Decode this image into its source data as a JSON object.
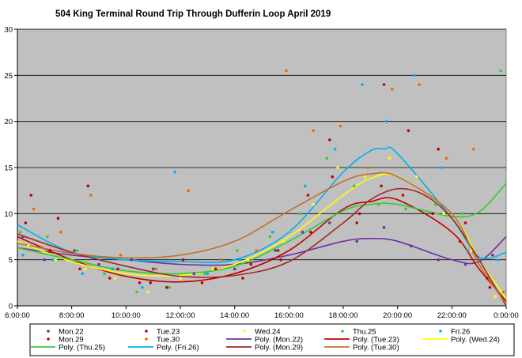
{
  "chart_data": {
    "type": "scatter",
    "title": "504 King  Terminal  Round  Trip  Through  Dufferin  Loop  April  2019",
    "xlabel": "",
    "ylabel": "",
    "x_tick_labels": [
      "6:00:00",
      "8:00:00",
      "10:00:00",
      "12:00:00",
      "14:00:00",
      "16:00:00",
      "18:00:00",
      "20:00:00",
      "22:00:00",
      "0:00:00"
    ],
    "y_tick_labels": [
      "0",
      "5",
      "10",
      "15",
      "20",
      "25",
      "30"
    ],
    "xlim_hours": [
      6,
      24
    ],
    "ylim": [
      0,
      30
    ],
    "grid": "horizontal",
    "plot_background": "#c0c0c0",
    "legend_position": "bottom",
    "series": [
      {
        "name": "Mon.22",
        "kind": "scatter",
        "color": "#7030a0",
        "points": [
          [
            6.2,
            7.5
          ],
          [
            7.0,
            5.0
          ],
          [
            8.1,
            6.0
          ],
          [
            9.0,
            4.5
          ],
          [
            10.2,
            5.0
          ],
          [
            11.0,
            4.0
          ],
          [
            12.5,
            3.5
          ],
          [
            14.0,
            4.0
          ],
          [
            15.5,
            6.0
          ],
          [
            16.5,
            8.0
          ],
          [
            17.5,
            9.0
          ],
          [
            18.5,
            7.0
          ],
          [
            19.5,
            8.5
          ],
          [
            20.5,
            6.5
          ],
          [
            21.5,
            5.0
          ],
          [
            22.5,
            4.5
          ],
          [
            23.5,
            5.5
          ]
        ]
      },
      {
        "name": "Tue.23",
        "kind": "scatter",
        "color": "#c00000",
        "points": [
          [
            6.3,
            9.0
          ],
          [
            7.2,
            6.0
          ],
          [
            8.3,
            4.0
          ],
          [
            9.4,
            3.0
          ],
          [
            10.5,
            2.5
          ],
          [
            11.5,
            2.0
          ],
          [
            12.8,
            2.5
          ],
          [
            14.3,
            3.0
          ],
          [
            15.7,
            5.0
          ],
          [
            16.8,
            8.0
          ],
          [
            17.6,
            14.0
          ],
          [
            18.6,
            10.0
          ],
          [
            19.4,
            13.0
          ],
          [
            20.2,
            12.0
          ],
          [
            21.3,
            10.0
          ],
          [
            22.3,
            7.0
          ],
          [
            23.3,
            3.0
          ]
        ]
      },
      {
        "name": "Wed.24",
        "kind": "scatter",
        "color": "#ffff00",
        "points": [
          [
            6.4,
            6.5
          ],
          [
            7.4,
            5.0
          ],
          [
            8.5,
            4.0
          ],
          [
            9.6,
            3.0
          ],
          [
            10.8,
            1.5
          ],
          [
            12.0,
            3.0
          ],
          [
            13.2,
            4.0
          ],
          [
            14.5,
            5.0
          ],
          [
            15.8,
            7.0
          ],
          [
            16.9,
            11.0
          ],
          [
            17.8,
            15.0
          ],
          [
            18.8,
            14.0
          ],
          [
            19.7,
            16.0
          ],
          [
            20.7,
            14.0
          ],
          [
            21.7,
            10.0
          ],
          [
            22.7,
            6.0
          ],
          [
            23.6,
            1.0
          ]
        ]
      },
      {
        "name": "Thu.25",
        "kind": "scatter",
        "color": "#33cc33",
        "points": [
          [
            6.1,
            8.0
          ],
          [
            7.1,
            7.5
          ],
          [
            8.2,
            6.0
          ],
          [
            9.2,
            3.5
          ],
          [
            10.4,
            1.5
          ],
          [
            11.6,
            2.0
          ],
          [
            12.9,
            3.5
          ],
          [
            14.1,
            6.0
          ],
          [
            15.3,
            7.5
          ],
          [
            16.4,
            10.0
          ],
          [
            17.4,
            16.0
          ],
          [
            18.4,
            13.0
          ],
          [
            19.3,
            11.0
          ],
          [
            20.3,
            10.5
          ],
          [
            21.4,
            11.0
          ],
          [
            22.4,
            10.0
          ],
          [
            23.8,
            25.5
          ]
        ]
      },
      {
        "name": "Fri.26",
        "kind": "scatter",
        "color": "#00b0f0",
        "points": [
          [
            6.2,
            5.5
          ],
          [
            7.3,
            5.0
          ],
          [
            8.4,
            3.5
          ],
          [
            9.5,
            4.0
          ],
          [
            10.6,
            2.0
          ],
          [
            11.8,
            14.5
          ],
          [
            13.0,
            3.5
          ],
          [
            14.2,
            5.0
          ],
          [
            15.4,
            8.0
          ],
          [
            16.6,
            13.0
          ],
          [
            17.7,
            17.0
          ],
          [
            18.7,
            24.0
          ],
          [
            19.6,
            20.0
          ],
          [
            20.6,
            25.0
          ],
          [
            21.6,
            15.0
          ],
          [
            22.6,
            6.0
          ],
          [
            23.7,
            5.0
          ]
        ]
      },
      {
        "name": "Mon.29",
        "kind": "scatter",
        "color": "#c00000",
        "points": [
          [
            6.5,
            12.0
          ],
          [
            7.5,
            9.5
          ],
          [
            8.6,
            13.0
          ],
          [
            9.7,
            4.0
          ],
          [
            10.9,
            2.5
          ],
          [
            12.1,
            5.0
          ],
          [
            13.3,
            4.0
          ],
          [
            14.6,
            4.5
          ],
          [
            15.6,
            6.0
          ],
          [
            16.7,
            12.0
          ],
          [
            17.5,
            18.0
          ],
          [
            18.5,
            9.0
          ],
          [
            19.5,
            24.0
          ],
          [
            20.4,
            19.0
          ],
          [
            21.5,
            17.0
          ],
          [
            22.5,
            9.0
          ],
          [
            23.4,
            2.0
          ]
        ]
      },
      {
        "name": "Tue.30",
        "kind": "scatter",
        "color": "#e46c0a",
        "points": [
          [
            6.6,
            10.5
          ],
          [
            7.6,
            8.0
          ],
          [
            8.7,
            12.0
          ],
          [
            9.8,
            5.5
          ],
          [
            11.1,
            4.0
          ],
          [
            12.3,
            12.5
          ],
          [
            13.5,
            5.0
          ],
          [
            14.8,
            6.0
          ],
          [
            15.9,
            25.5
          ],
          [
            16.9,
            19.0
          ],
          [
            17.9,
            19.5
          ],
          [
            18.9,
            15.0
          ],
          [
            19.8,
            23.5
          ],
          [
            20.8,
            24.0
          ],
          [
            21.8,
            16.0
          ],
          [
            22.8,
            17.0
          ],
          [
            23.9,
            1.5
          ]
        ]
      },
      {
        "name": "Poly. (Mon.22)",
        "kind": "trend",
        "color": "#7030a0",
        "points": [
          [
            6,
            6.3
          ],
          [
            8,
            5.5
          ],
          [
            10,
            5.0
          ],
          [
            12,
            4.5
          ],
          [
            14,
            4.5
          ],
          [
            16,
            5.5
          ],
          [
            18,
            7.0
          ],
          [
            19,
            7.3
          ],
          [
            20,
            7.0
          ],
          [
            22,
            5.0
          ],
          [
            23,
            4.8
          ],
          [
            24,
            7.5
          ]
        ]
      },
      {
        "name": "Poly. (Tue.23)",
        "kind": "trend",
        "color": "#c00000",
        "points": [
          [
            6,
            7.5
          ],
          [
            8,
            5.0
          ],
          [
            10,
            3.2
          ],
          [
            12,
            2.6
          ],
          [
            14,
            3.5
          ],
          [
            16,
            6.0
          ],
          [
            18,
            10.5
          ],
          [
            19,
            11.3
          ],
          [
            20,
            11.5
          ],
          [
            22,
            8.0
          ],
          [
            23,
            4.0
          ],
          [
            24,
            0.5
          ]
        ]
      },
      {
        "name": "Poly. (Wed.24)",
        "kind": "trend",
        "color": "#ffff00",
        "points": [
          [
            6,
            7.0
          ],
          [
            8,
            4.8
          ],
          [
            10,
            3.5
          ],
          [
            12,
            3.3
          ],
          [
            14,
            4.5
          ],
          [
            16,
            7.5
          ],
          [
            18,
            12.0
          ],
          [
            19,
            13.8
          ],
          [
            20,
            14.0
          ],
          [
            22,
            10.0
          ],
          [
            23,
            5.0
          ],
          [
            24,
            0.8
          ]
        ]
      },
      {
        "name": "Poly. (Thu.25)",
        "kind": "trend",
        "color": "#33cc33",
        "points": [
          [
            6,
            6.3
          ],
          [
            8,
            5.0
          ],
          [
            10,
            3.8
          ],
          [
            12,
            3.5
          ],
          [
            14,
            4.3
          ],
          [
            16,
            7.0
          ],
          [
            18,
            10.3
          ],
          [
            19,
            11.0
          ],
          [
            20,
            11.0
          ],
          [
            22,
            9.7
          ],
          [
            23,
            10.2
          ],
          [
            24,
            13.3
          ]
        ]
      },
      {
        "name": "Poly. (Fri.26)",
        "kind": "trend",
        "color": "#00b0f0",
        "points": [
          [
            6,
            8.8
          ],
          [
            8,
            5.8
          ],
          [
            10,
            5.0
          ],
          [
            12,
            4.8
          ],
          [
            14,
            5.0
          ],
          [
            16,
            8.0
          ],
          [
            18,
            14.5
          ],
          [
            19,
            16.8
          ],
          [
            19.5,
            17.0
          ],
          [
            20,
            16.5
          ],
          [
            22,
            9.5
          ],
          [
            23,
            5.3
          ],
          [
            24,
            5.8
          ]
        ]
      },
      {
        "name": "Poly. (Mon.29)",
        "kind": "trend",
        "color": "#a0282a",
        "points": [
          [
            6,
            7.8
          ],
          [
            8,
            5.8
          ],
          [
            10,
            4.3
          ],
          [
            12,
            3.2
          ],
          [
            14,
            3.3
          ],
          [
            16,
            4.8
          ],
          [
            18,
            9.0
          ],
          [
            19,
            11.5
          ],
          [
            20,
            12.7
          ],
          [
            21,
            12.0
          ],
          [
            22,
            9.5
          ],
          [
            23,
            5.0
          ],
          [
            24,
            0.0
          ]
        ]
      },
      {
        "name": "Poly. (Tue.30)",
        "kind": "trend",
        "color": "#c0702a",
        "points": [
          [
            6,
            6.8
          ],
          [
            8,
            5.7
          ],
          [
            10,
            5.2
          ],
          [
            12,
            5.5
          ],
          [
            14,
            7.0
          ],
          [
            16,
            10.3
          ],
          [
            18,
            13.5
          ],
          [
            19,
            14.3
          ],
          [
            20,
            14.0
          ],
          [
            22,
            10.0
          ],
          [
            23,
            4.5
          ],
          [
            24,
            0.2
          ]
        ]
      }
    ]
  }
}
